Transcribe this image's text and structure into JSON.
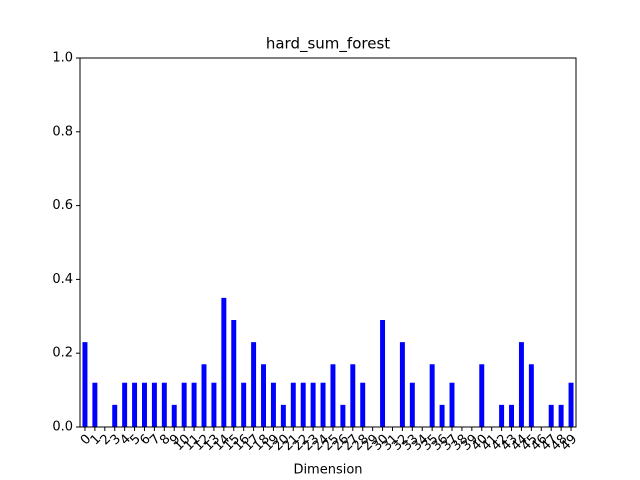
{
  "chart_data": {
    "type": "bar",
    "title": "hard_sum_forest",
    "xlabel": "Dimension",
    "categories": [
      "0",
      "1",
      "2",
      "3",
      "4",
      "5",
      "6",
      "7",
      "8",
      "9",
      "10",
      "11",
      "12",
      "13",
      "14",
      "15",
      "16",
      "17",
      "18",
      "19",
      "20",
      "21",
      "22",
      "23",
      "24",
      "25",
      "26",
      "27",
      "28",
      "29",
      "30",
      "31",
      "32",
      "33",
      "34",
      "35",
      "36",
      "37",
      "38",
      "39",
      "40",
      "41",
      "42",
      "43",
      "44",
      "45",
      "46",
      "47",
      "48",
      "49"
    ],
    "values": [
      0.23,
      0.12,
      0,
      0.06,
      0.12,
      0.12,
      0.12,
      0.12,
      0.12,
      0.06,
      0.12,
      0.12,
      0.17,
      0.12,
      0.35,
      0.29,
      0.12,
      0.23,
      0.17,
      0.12,
      0.06,
      0.12,
      0.12,
      0.12,
      0.12,
      0.17,
      0.06,
      0.17,
      0.12,
      0,
      0.29,
      0,
      0.23,
      0.12,
      0,
      0.17,
      0.06,
      0.12,
      0,
      0,
      0.17,
      0,
      0.06,
      0.06,
      0.23,
      0.17,
      0,
      0.06,
      0.06,
      0.12
    ],
    "color": "#0000ff",
    "ylim": [
      0,
      1
    ],
    "yticks": [
      {
        "value": 0,
        "label": "0.0"
      },
      {
        "value": 0.2,
        "label": "0.2"
      },
      {
        "value": 0.4,
        "label": "0.4"
      },
      {
        "value": 0.6,
        "label": "0.6"
      },
      {
        "value": 0.8,
        "label": "0.8"
      },
      {
        "value": 1,
        "label": "1.0"
      }
    ]
  }
}
